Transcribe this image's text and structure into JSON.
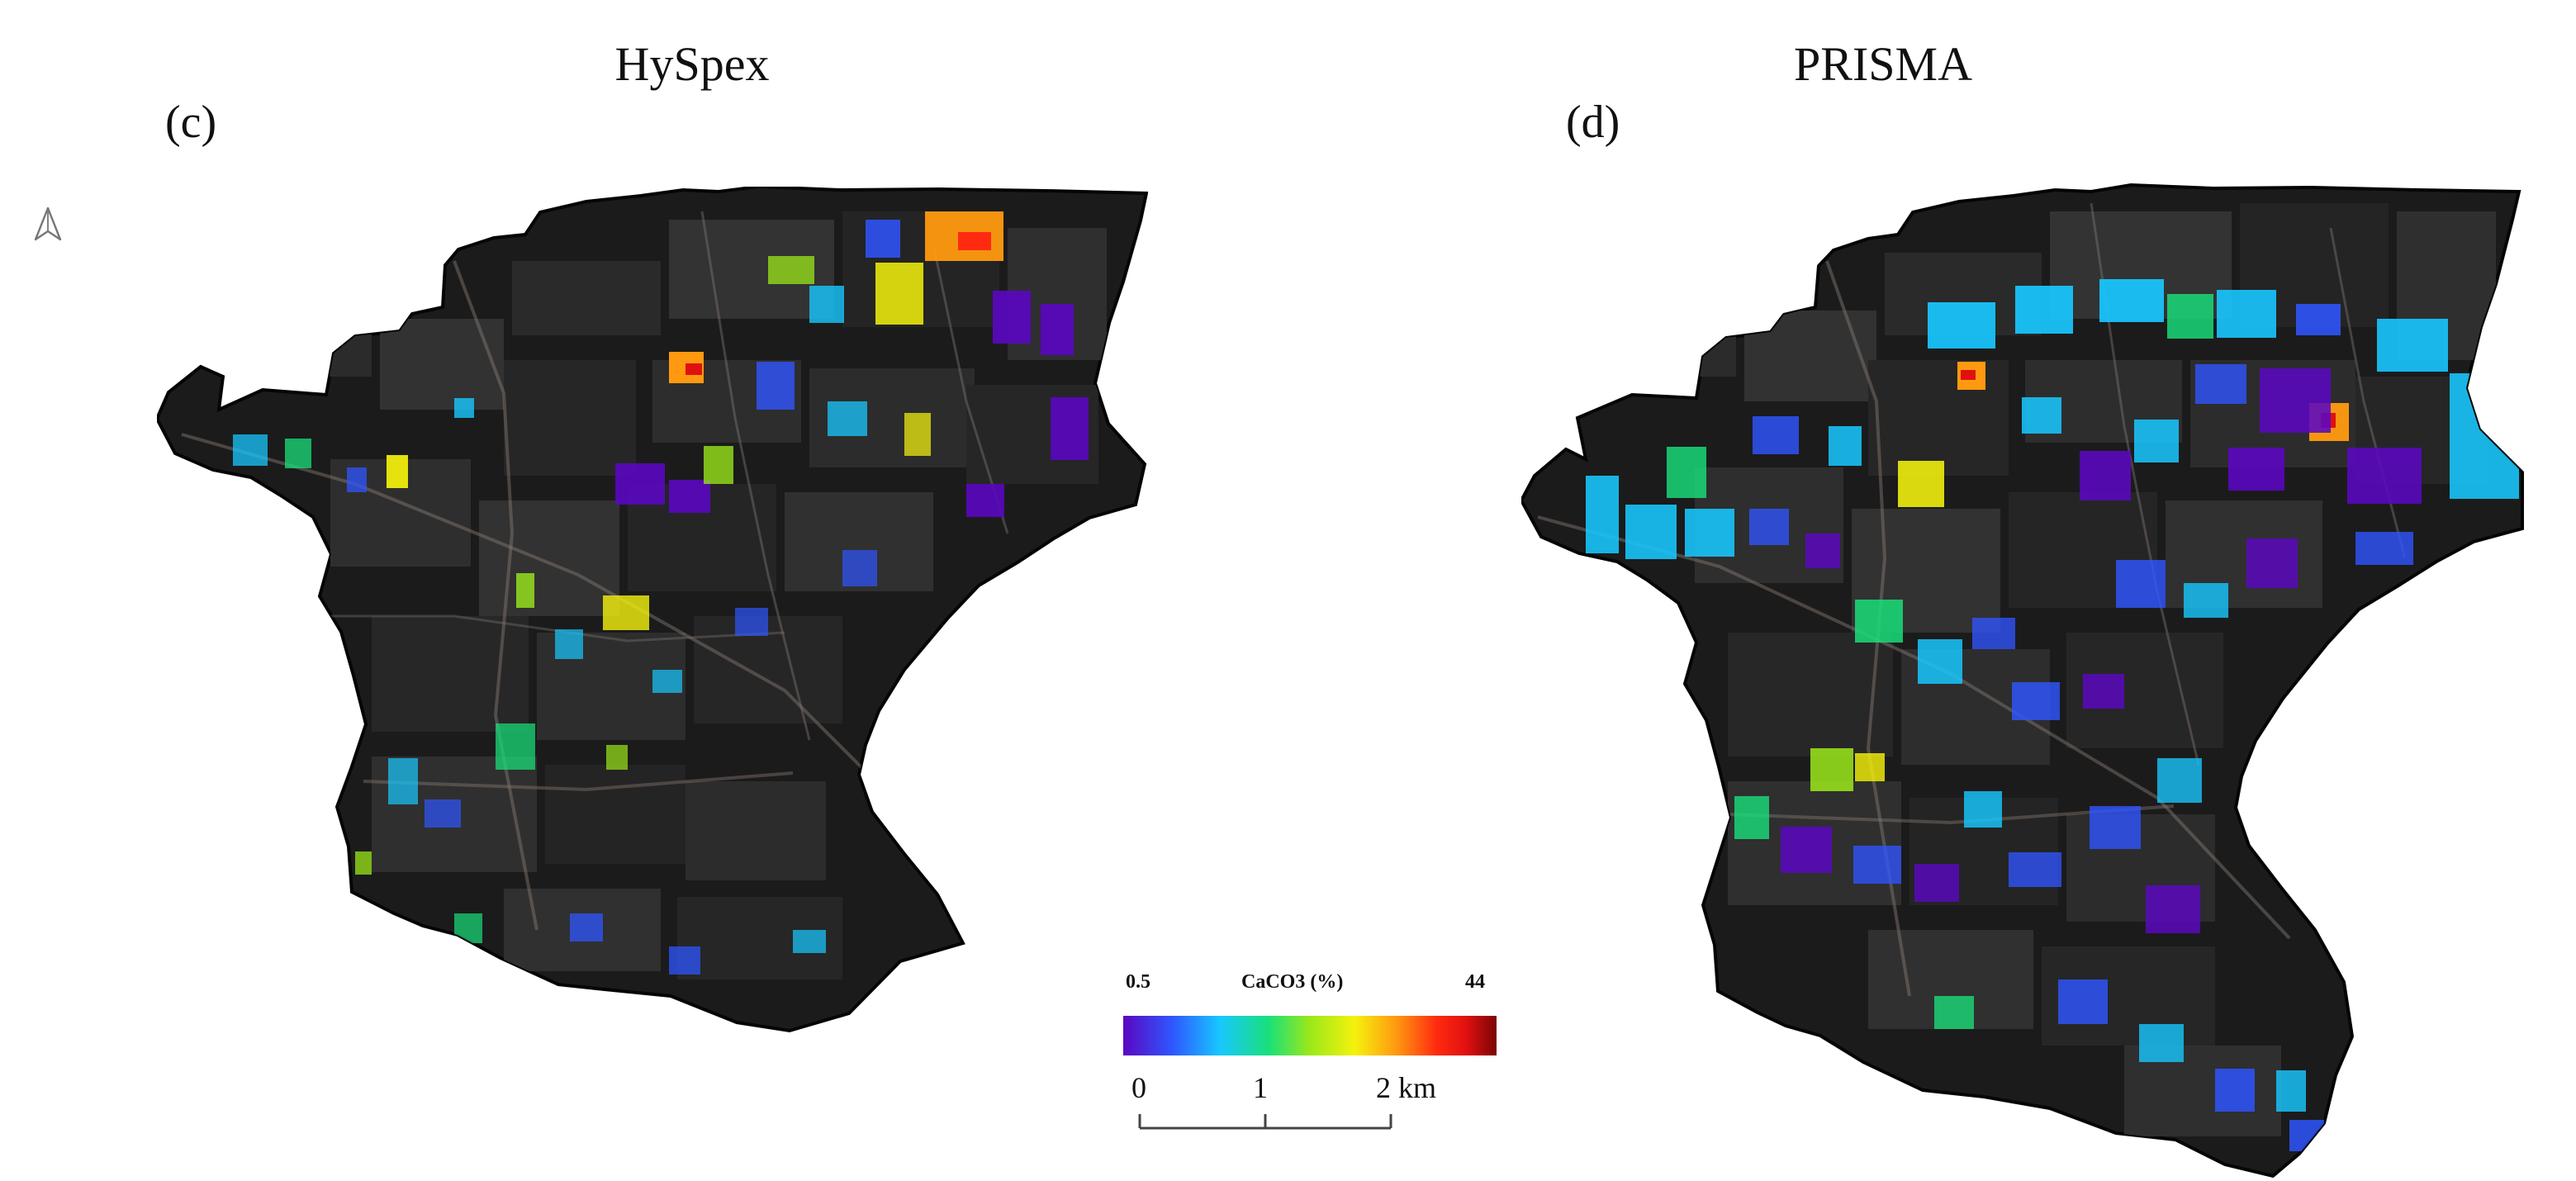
{
  "panels": [
    {
      "title": "HySpex",
      "label": "(c)"
    },
    {
      "title": "PRISMA",
      "label": "(d)"
    }
  ],
  "legend": {
    "title": "CaCO3 (%)",
    "min_label": "0.5",
    "max_label": "44",
    "min_value": 0.5,
    "max_value": 44,
    "colors": [
      "#5a08c0",
      "#2f55ff",
      "#18c8ff",
      "#19e07a",
      "#9be81a",
      "#f5f20c",
      "#ff9a10",
      "#ff2a10",
      "#e01010",
      "#7a0404"
    ]
  },
  "scale_bar": {
    "labels": [
      "0",
      "1",
      "2 km"
    ]
  },
  "icons": {
    "north_arrow": "north-arrow-icon"
  },
  "colors": {
    "map_background": "#1b1b1b",
    "field_dark": "#2b2b2b",
    "outline": "#050505",
    "road": "#8a7d75"
  }
}
